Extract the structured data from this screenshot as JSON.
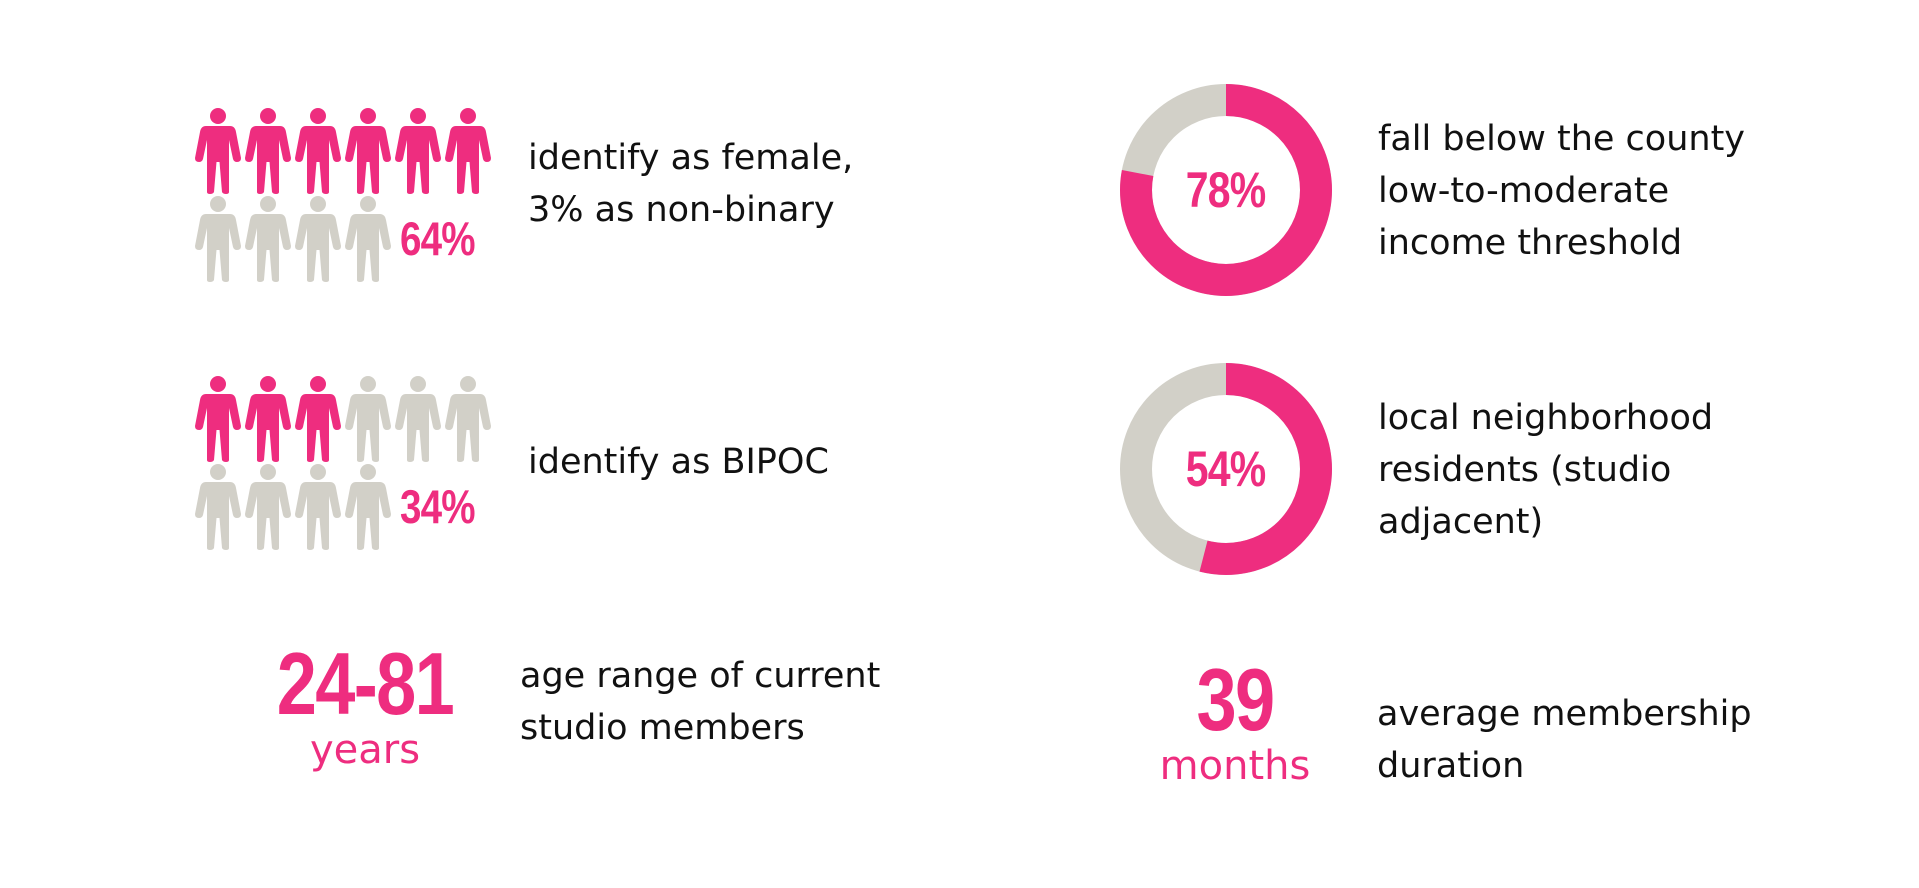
{
  "colors": {
    "accent": "#ee2d7f",
    "muted": "#d2d0c8",
    "text": "#111111"
  },
  "stats": {
    "female": {
      "percent": "64%",
      "filled_figures": 6,
      "total_figures": 10,
      "line1": "identify as female,",
      "line2": "3% as non-binary"
    },
    "bipoc": {
      "percent": "34%",
      "filled_figures": 3,
      "total_figures": 10,
      "line1": "identify as BIPOC"
    },
    "age": {
      "value": "24-81",
      "unit": "years",
      "line1": "age range of current",
      "line2": "studio members"
    },
    "income": {
      "percent": "78%",
      "fraction": 0.78,
      "line1": "fall below the county",
      "line2": "low-to-moderate",
      "line3": "income threshold"
    },
    "local": {
      "percent": "54%",
      "fraction": 0.54,
      "line1": "local neighborhood",
      "line2": "residents (studio",
      "line3": "adjacent)"
    },
    "duration": {
      "value": "39",
      "unit": "months",
      "line1": "average membership",
      "line2": "duration"
    }
  }
}
